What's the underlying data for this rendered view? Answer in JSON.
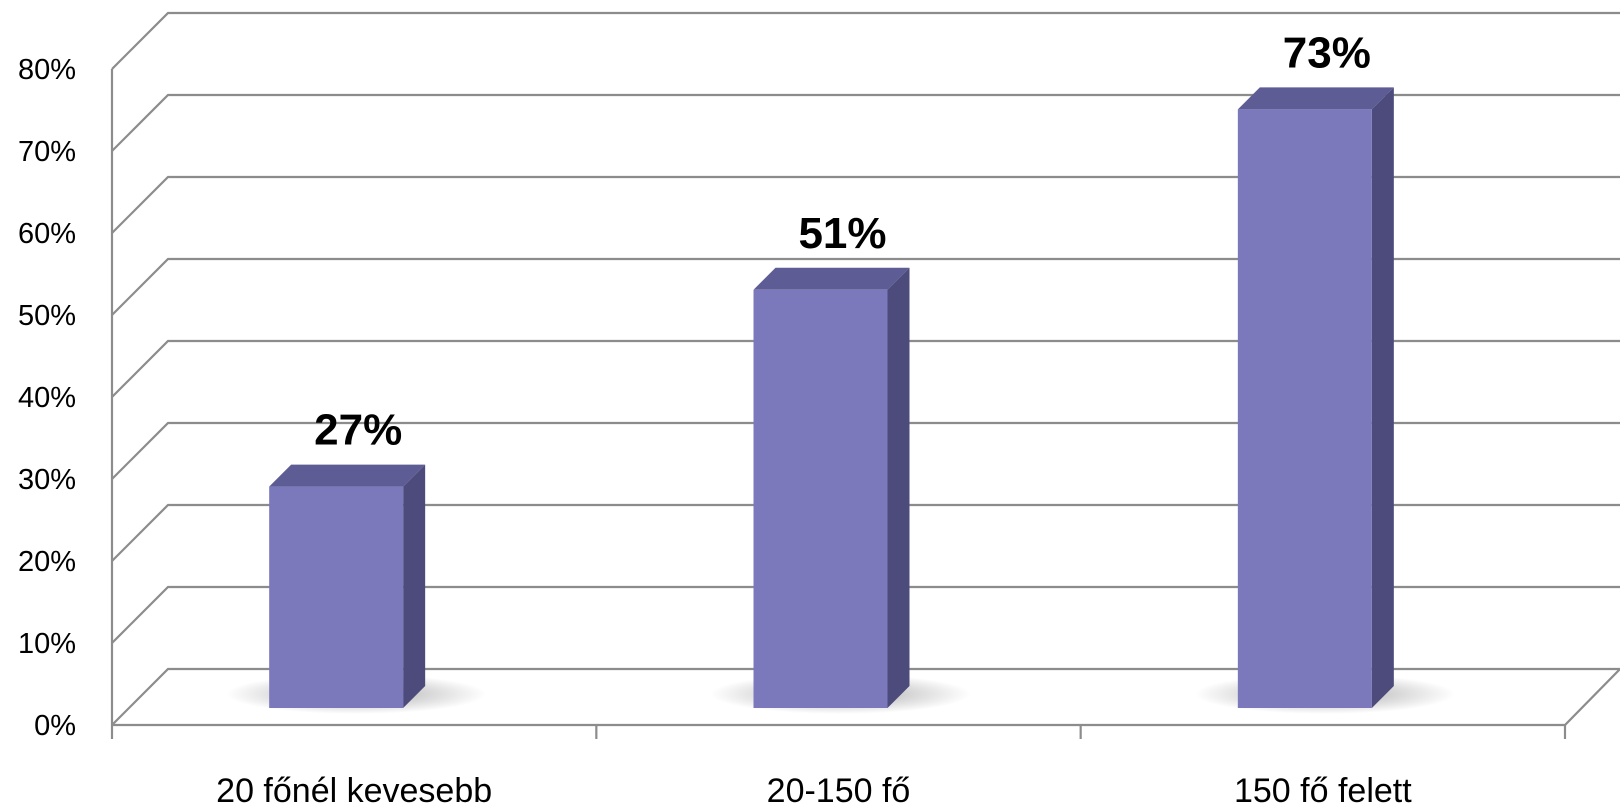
{
  "chart_data": {
    "type": "bar",
    "categories": [
      "20 főnél kevesebb",
      "20-150 fő",
      "150 fő felett"
    ],
    "values": [
      27,
      51,
      73
    ],
    "data_labels": [
      "27%",
      "51%",
      "73%"
    ],
    "y_ticks": [
      "0%",
      "10%",
      "20%",
      "30%",
      "40%",
      "50%",
      "60%",
      "70%",
      "80%"
    ],
    "ylim": [
      0,
      80
    ],
    "grid": true,
    "style": "3d-column",
    "colors": {
      "bar_front": "#7b79bc",
      "bar_top": "#5e5c94",
      "bar_side": "#4d4b7c",
      "grid": "#8c8c8c"
    }
  }
}
